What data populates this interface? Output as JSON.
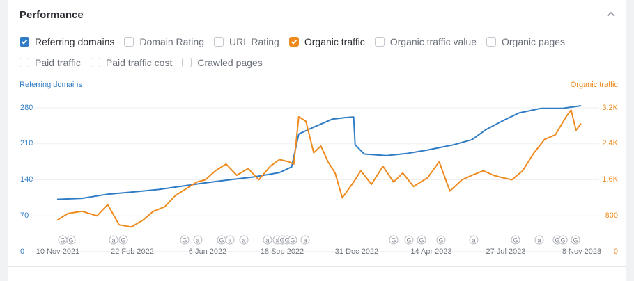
{
  "panel": {
    "title": "Performance"
  },
  "metrics": [
    {
      "label": "Referring domains",
      "checked": true,
      "color": "#2f7cc5"
    },
    {
      "label": "Domain Rating",
      "checked": false
    },
    {
      "label": "URL Rating",
      "checked": false
    },
    {
      "label": "Organic traffic",
      "checked": true,
      "color": "#ee8a1e"
    },
    {
      "label": "Organic traffic value",
      "checked": false
    },
    {
      "label": "Organic pages",
      "checked": false
    },
    {
      "label": "Paid traffic",
      "checked": false
    },
    {
      "label": "Paid traffic cost",
      "checked": false
    },
    {
      "label": "Crawled pages",
      "checked": false
    }
  ],
  "chart_data": {
    "type": "line",
    "x_labels": [
      "10 Nov 2021",
      "22 Feb 2022",
      "6 Jun 2022",
      "18 Sep 2022",
      "31 Dec 2022",
      "14 Apr 2023",
      "27 Jul 2023",
      "8 Nov 2023"
    ],
    "left_axis": {
      "title": "Referring domains",
      "ticks": [
        "280",
        "210",
        "140",
        "70",
        "0"
      ],
      "color": "#2f7cc5",
      "range": [
        0,
        280
      ]
    },
    "right_axis": {
      "title": "Organic traffic",
      "ticks": [
        "3.2K",
        "2.4K",
        "1.6K",
        "800",
        "0"
      ],
      "color": "#ee8a1e",
      "range": [
        0,
        3200
      ]
    },
    "series": [
      {
        "name": "Referring domains",
        "color": "#2f7cc5",
        "x": [
          "2021-11-10",
          "2021-12-15",
          "2022-01-20",
          "2022-02-22",
          "2022-04-01",
          "2022-05-01",
          "2022-06-06",
          "2022-07-10",
          "2022-08-15",
          "2022-09-18",
          "2022-10-05",
          "2022-10-15",
          "2022-11-01",
          "2022-12-01",
          "2022-12-20",
          "2022-12-31",
          "2023-01-02",
          "2023-01-15",
          "2023-02-15",
          "2023-03-15",
          "2023-04-14",
          "2023-05-20",
          "2023-06-15",
          "2023-07-05",
          "2023-07-27",
          "2023-08-20",
          "2023-09-20",
          "2023-10-20",
          "2023-11-15"
        ],
        "values": [
          102,
          104,
          112,
          116,
          121,
          127,
          134,
          140,
          146,
          154,
          165,
          229,
          240,
          258,
          261,
          262,
          208,
          190,
          187,
          191,
          198,
          208,
          218,
          238,
          254,
          270,
          279,
          279,
          284
        ]
      },
      {
        "name": "Organic traffic",
        "color": "#ee8a1e",
        "x": [
          "2021-11-10",
          "2021-11-25",
          "2021-12-15",
          "2022-01-05",
          "2022-01-20",
          "2022-02-05",
          "2022-02-22",
          "2022-03-10",
          "2022-03-25",
          "2022-04-10",
          "2022-04-25",
          "2022-05-10",
          "2022-05-25",
          "2022-06-06",
          "2022-06-20",
          "2022-07-05",
          "2022-07-20",
          "2022-08-05",
          "2022-08-20",
          "2022-09-05",
          "2022-09-18",
          "2022-10-01",
          "2022-10-08",
          "2022-10-15",
          "2022-10-25",
          "2022-11-05",
          "2022-11-15",
          "2022-11-25",
          "2022-12-05",
          "2022-12-15",
          "2022-12-31",
          "2023-01-10",
          "2023-01-25",
          "2023-02-10",
          "2023-02-25",
          "2023-03-10",
          "2023-03-25",
          "2023-04-14",
          "2023-04-30",
          "2023-05-15",
          "2023-06-01",
          "2023-06-15",
          "2023-07-01",
          "2023-07-15",
          "2023-07-27",
          "2023-08-10",
          "2023-08-25",
          "2023-09-10",
          "2023-09-25",
          "2023-10-10",
          "2023-10-25",
          "2023-11-01",
          "2023-11-08",
          "2023-11-15"
        ],
        "values": [
          700,
          850,
          900,
          800,
          1050,
          600,
          550,
          700,
          900,
          1000,
          1250,
          1400,
          1550,
          1600,
          1800,
          1950,
          1700,
          1850,
          1600,
          1900,
          2050,
          2000,
          1950,
          3000,
          2900,
          2200,
          2350,
          2000,
          1750,
          1200,
          1550,
          1800,
          1500,
          1900,
          1550,
          1750,
          1450,
          1650,
          2000,
          1350,
          1600,
          1700,
          1800,
          1700,
          1650,
          1600,
          1800,
          2200,
          2500,
          2600,
          3000,
          3150,
          2700,
          2850
        ]
      }
    ],
    "event_markers": [
      "G",
      "G",
      "a",
      "G",
      "G",
      "a",
      "G",
      "a",
      "a",
      "a",
      "a",
      "G",
      "G",
      "G",
      "a",
      "G",
      "G",
      "G",
      "G",
      "a",
      "G",
      "a",
      "G",
      "G",
      "G"
    ],
    "grid": "horizontal",
    "legend": "checkbox list above chart"
  }
}
